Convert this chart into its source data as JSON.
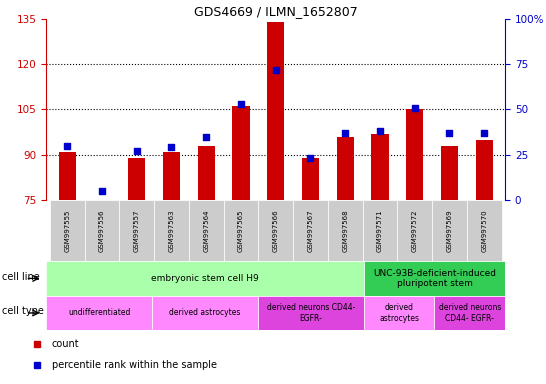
{
  "title": "GDS4669 / ILMN_1652807",
  "samples": [
    "GSM997555",
    "GSM997556",
    "GSM997557",
    "GSM997563",
    "GSM997564",
    "GSM997565",
    "GSM997566",
    "GSM997567",
    "GSM997568",
    "GSM997571",
    "GSM997572",
    "GSM997569",
    "GSM997570"
  ],
  "counts": [
    91,
    75,
    89,
    91,
    93,
    106,
    134,
    89,
    96,
    97,
    105,
    93,
    95
  ],
  "percentiles": [
    30,
    5,
    27,
    29,
    35,
    53,
    72,
    23,
    37,
    38,
    51,
    37,
    37
  ],
  "ylim_left": [
    75,
    135
  ],
  "ylim_right": [
    0,
    100
  ],
  "yticks_left": [
    75,
    90,
    105,
    120,
    135
  ],
  "yticks_right": [
    0,
    25,
    50,
    75,
    100
  ],
  "ytick_labels_right": [
    "0",
    "25",
    "50",
    "75",
    "100%"
  ],
  "bar_color": "#cc0000",
  "dot_color": "#0000cc",
  "grid_color": "#000000",
  "cell_line_groups": [
    {
      "label": "embryonic stem cell H9",
      "start": 0,
      "end": 9,
      "color": "#aaffaa"
    },
    {
      "label": "UNC-93B-deficient-induced\npluripotent stem",
      "start": 9,
      "end": 13,
      "color": "#33cc55"
    }
  ],
  "cell_type_groups": [
    {
      "label": "undifferentiated",
      "start": 0,
      "end": 3,
      "color": "#ff88ff"
    },
    {
      "label": "derived astrocytes",
      "start": 3,
      "end": 6,
      "color": "#ff88ff"
    },
    {
      "label": "derived neurons CD44-\nEGFR-",
      "start": 6,
      "end": 9,
      "color": "#dd44dd"
    },
    {
      "label": "derived\nastrocytes",
      "start": 9,
      "end": 11,
      "color": "#ff88ff"
    },
    {
      "label": "derived neurons\nCD44- EGFR-",
      "start": 11,
      "end": 13,
      "color": "#dd44dd"
    }
  ],
  "left_axis_color": "#cc0000",
  "right_axis_color": "#0000cc",
  "legend_items": [
    {
      "label": "count",
      "color": "#cc0000"
    },
    {
      "label": "percentile rank within the sample",
      "color": "#0000cc"
    }
  ]
}
